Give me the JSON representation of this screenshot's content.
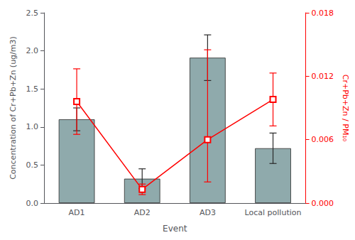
{
  "chart_data": {
    "type": "bar",
    "xlabel": "Event",
    "ylabel": "Concentration of Cr+Pb+Zn (ug/m3)",
    "y2label": "Cr+Pb+Zn / PM₁₀",
    "categories": [
      "AD1",
      "AD2",
      "AD3",
      "Local pollution"
    ],
    "series": [
      {
        "type": "bar",
        "color": "#8faaac",
        "values": [
          1.1,
          0.32,
          1.91,
          0.72
        ],
        "errors": [
          0.15,
          0.13,
          0.3,
          0.2
        ]
      },
      {
        "type": "line",
        "axis": "y2",
        "color": "#ff0000",
        "marker": "square",
        "values": [
          0.0096,
          0.0013,
          0.006,
          0.0098
        ],
        "errors_lower": [
          0.0031,
          0.0005,
          0.004,
          0.0025
        ],
        "errors_upper": [
          0.0031,
          0.0005,
          0.0085,
          0.0025
        ]
      }
    ],
    "ylim": [
      0,
      2.5
    ],
    "yticks": [
      {
        "value": 0,
        "label": "0.0"
      },
      0.5,
      {
        "value": 1,
        "label": "1.0"
      },
      1.5,
      {
        "value": 2,
        "label": "2.0"
      },
      2.5
    ],
    "y2lim": [
      0,
      0.018
    ],
    "y2ticks": [
      {
        "value": 0,
        "label": "0.000"
      },
      0.006,
      0.012,
      0.018
    ],
    "grid": false
  }
}
